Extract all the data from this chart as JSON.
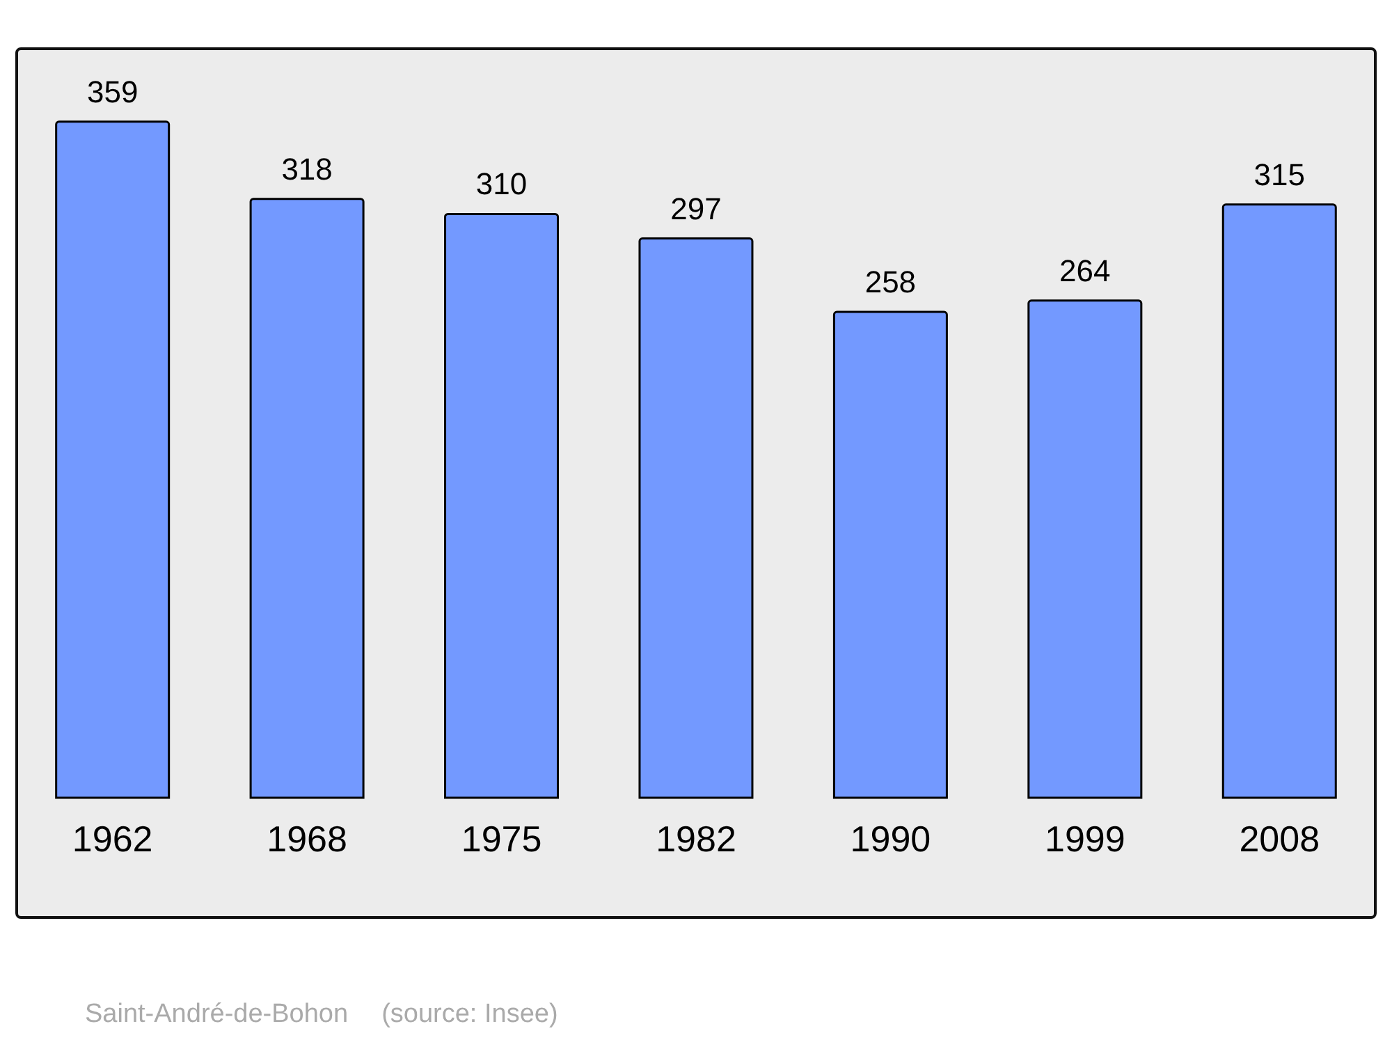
{
  "chart_data": {
    "type": "bar",
    "categories": [
      "1962",
      "1968",
      "1975",
      "1982",
      "1990",
      "1999",
      "2008"
    ],
    "values": [
      359,
      318,
      310,
      297,
      258,
      264,
      315
    ],
    "color": "#7399ff",
    "data_labels": true,
    "annotations": [
      "Saint-André-de-Bohon",
      "(source: Insee)"
    ]
  }
}
